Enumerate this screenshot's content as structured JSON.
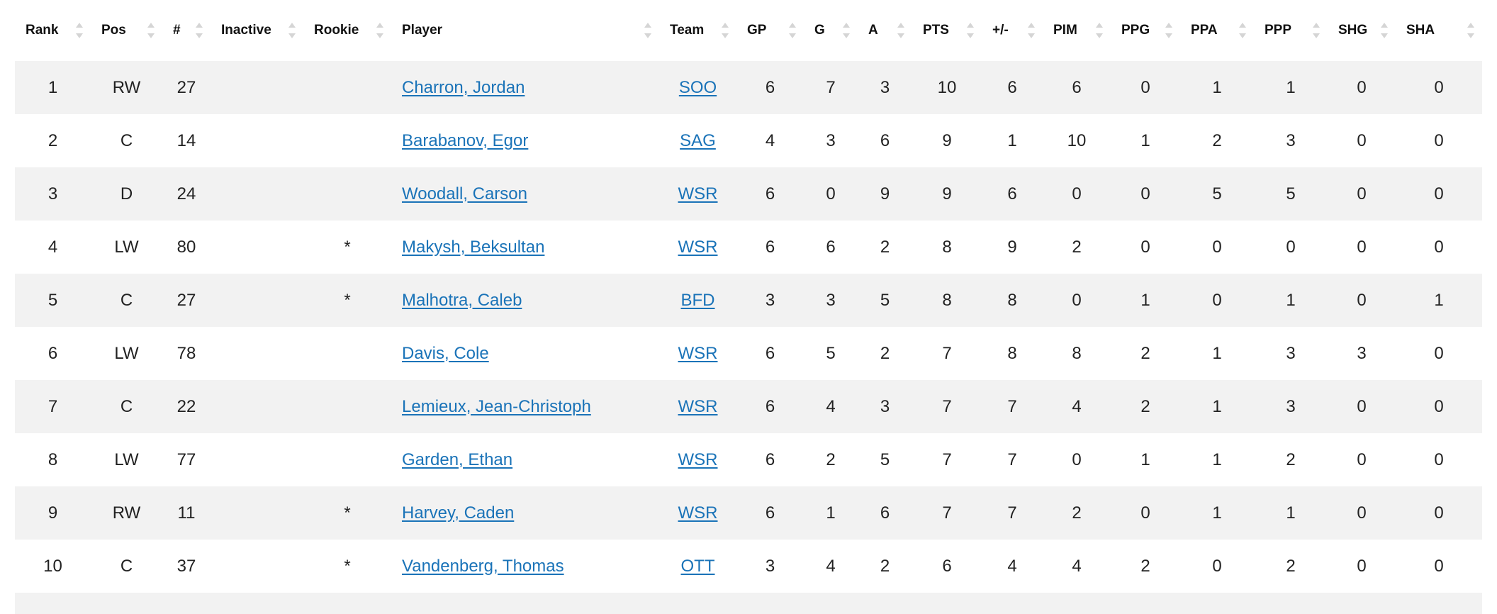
{
  "columns": [
    "Rank",
    "Pos",
    "#",
    "Inactive",
    "Rookie",
    "Player",
    "Team",
    "GP",
    "G",
    "A",
    "PTS",
    "+/-",
    "PIM",
    "PPG",
    "PPA",
    "PPP",
    "SHG",
    "SHA"
  ],
  "rows": [
    {
      "rank": "1",
      "pos": "RW",
      "num": "27",
      "inactive": "",
      "rookie": "",
      "player": "Charron, Jordan",
      "team": "SOO",
      "gp": "6",
      "g": "7",
      "a": "3",
      "pts": "10",
      "pm": "6",
      "pim": "6",
      "ppg": "0",
      "ppa": "1",
      "ppp": "1",
      "shg": "0",
      "sha": "0"
    },
    {
      "rank": "2",
      "pos": "C",
      "num": "14",
      "inactive": "",
      "rookie": "",
      "player": "Barabanov, Egor",
      "team": "SAG",
      "gp": "4",
      "g": "3",
      "a": "6",
      "pts": "9",
      "pm": "1",
      "pim": "10",
      "ppg": "1",
      "ppa": "2",
      "ppp": "3",
      "shg": "0",
      "sha": "0"
    },
    {
      "rank": "3",
      "pos": "D",
      "num": "24",
      "inactive": "",
      "rookie": "",
      "player": "Woodall, Carson",
      "team": "WSR",
      "gp": "6",
      "g": "0",
      "a": "9",
      "pts": "9",
      "pm": "6",
      "pim": "0",
      "ppg": "0",
      "ppa": "5",
      "ppp": "5",
      "shg": "0",
      "sha": "0"
    },
    {
      "rank": "4",
      "pos": "LW",
      "num": "80",
      "inactive": "",
      "rookie": "*",
      "player": "Makysh, Beksultan",
      "team": "WSR",
      "gp": "6",
      "g": "6",
      "a": "2",
      "pts": "8",
      "pm": "9",
      "pim": "2",
      "ppg": "0",
      "ppa": "0",
      "ppp": "0",
      "shg": "0",
      "sha": "0"
    },
    {
      "rank": "5",
      "pos": "C",
      "num": "27",
      "inactive": "",
      "rookie": "*",
      "player": "Malhotra, Caleb",
      "team": "BFD",
      "gp": "3",
      "g": "3",
      "a": "5",
      "pts": "8",
      "pm": "8",
      "pim": "0",
      "ppg": "1",
      "ppa": "0",
      "ppp": "1",
      "shg": "0",
      "sha": "1"
    },
    {
      "rank": "6",
      "pos": "LW",
      "num": "78",
      "inactive": "",
      "rookie": "",
      "player": "Davis, Cole",
      "team": "WSR",
      "gp": "6",
      "g": "5",
      "a": "2",
      "pts": "7",
      "pm": "8",
      "pim": "8",
      "ppg": "2",
      "ppa": "1",
      "ppp": "3",
      "shg": "3",
      "sha": "0"
    },
    {
      "rank": "7",
      "pos": "C",
      "num": "22",
      "inactive": "",
      "rookie": "",
      "player": "Lemieux, Jean-Christoph",
      "team": "WSR",
      "gp": "6",
      "g": "4",
      "a": "3",
      "pts": "7",
      "pm": "7",
      "pim": "4",
      "ppg": "2",
      "ppa": "1",
      "ppp": "3",
      "shg": "0",
      "sha": "0"
    },
    {
      "rank": "8",
      "pos": "LW",
      "num": "77",
      "inactive": "",
      "rookie": "",
      "player": "Garden, Ethan",
      "team": "WSR",
      "gp": "6",
      "g": "2",
      "a": "5",
      "pts": "7",
      "pm": "7",
      "pim": "0",
      "ppg": "1",
      "ppa": "1",
      "ppp": "2",
      "shg": "0",
      "sha": "0"
    },
    {
      "rank": "9",
      "pos": "RW",
      "num": "11",
      "inactive": "",
      "rookie": "*",
      "player": "Harvey, Caden",
      "team": "WSR",
      "gp": "6",
      "g": "1",
      "a": "6",
      "pts": "7",
      "pm": "7",
      "pim": "2",
      "ppg": "0",
      "ppa": "1",
      "ppp": "1",
      "shg": "0",
      "sha": "0"
    },
    {
      "rank": "10",
      "pos": "C",
      "num": "37",
      "inactive": "",
      "rookie": "*",
      "player": "Vandenberg, Thomas",
      "team": "OTT",
      "gp": "3",
      "g": "4",
      "a": "2",
      "pts": "6",
      "pm": "4",
      "pim": "4",
      "ppg": "2",
      "ppa": "0",
      "ppp": "2",
      "shg": "0",
      "sha": "0"
    }
  ],
  "colors": {
    "link": "#1a73b8",
    "stripe": "#f2f2f2",
    "sort_arrow": "#d5d5d5"
  }
}
